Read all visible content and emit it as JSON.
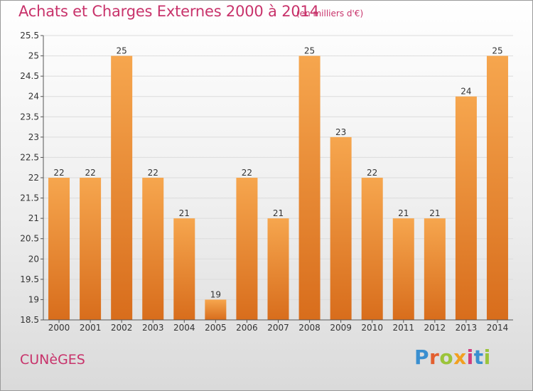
{
  "header": {
    "title": "Achats et Charges Externes 2000 à 2014",
    "unit": "(en milliers d'€)"
  },
  "footer": {
    "commune": "CUNèGES",
    "brand": "Proxiti"
  },
  "colors": {
    "title": "#c8336b",
    "bar_top": "#f6a64e",
    "bar_bottom": "#d86d1c",
    "grid": "#dcdcdc"
  },
  "chart_data": {
    "type": "bar",
    "title": "Achats et Charges Externes 2000 à 2014",
    "subtitle": "(en milliers d'€)",
    "categories": [
      "2000",
      "2001",
      "2002",
      "2003",
      "2004",
      "2005",
      "2006",
      "2007",
      "2008",
      "2009",
      "2010",
      "2011",
      "2012",
      "2013",
      "2014"
    ],
    "values": [
      22,
      22,
      25,
      22,
      21,
      19,
      22,
      21,
      25,
      23,
      22,
      21,
      21,
      24,
      25
    ],
    "labels": [
      "22",
      "22",
      "25",
      "22",
      "21",
      "19",
      "22",
      "21",
      "25",
      "23",
      "22",
      "21",
      "21",
      "24",
      "25"
    ],
    "ylim": [
      18.5,
      25.5
    ],
    "yticks": [
      18.5,
      19,
      19.5,
      20,
      20.5,
      21,
      21.5,
      22,
      22.5,
      23,
      23.5,
      24,
      24.5,
      25,
      25.5
    ],
    "ytick_labels": [
      "18.5",
      "19",
      "19.5",
      "20",
      "20.5",
      "21",
      "21.5",
      "22",
      "22.5",
      "23",
      "23.5",
      "24",
      "24.5",
      "25",
      "25.5"
    ],
    "grid": true,
    "xlabel": "",
    "ylabel": ""
  }
}
